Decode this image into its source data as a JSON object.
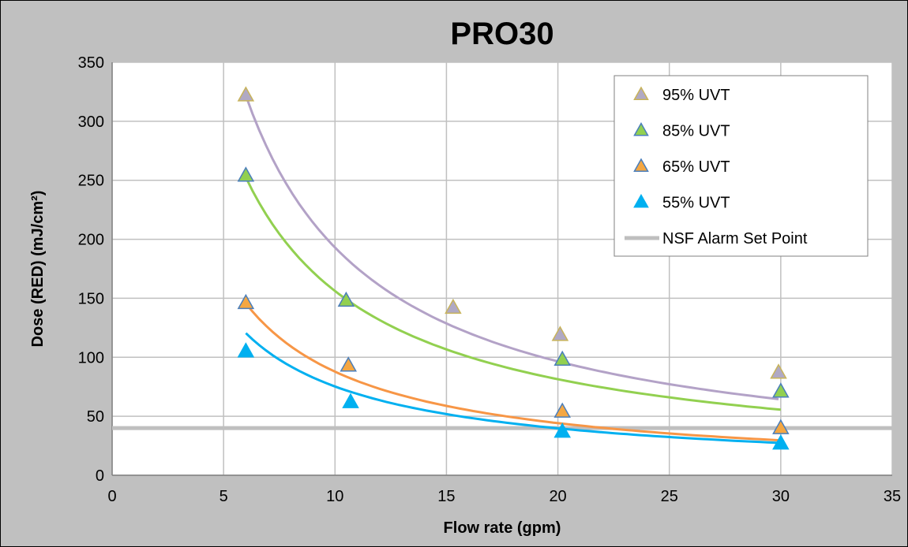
{
  "chart_data": {
    "type": "scatter",
    "title": "PRO30",
    "xlabel": "Flow rate  (gpm)",
    "ylabel": "Dose (RED) (mJ/cm²)",
    "xlim": [
      0,
      35
    ],
    "ylim": [
      0,
      350
    ],
    "xticks": [
      0,
      5,
      10,
      15,
      20,
      25,
      30,
      35
    ],
    "yticks": [
      0,
      50,
      100,
      150,
      200,
      250,
      300,
      350
    ],
    "grid": true,
    "legend_position": "top-right",
    "series": [
      {
        "name": "95% UVT",
        "marker_fill": "#b0a9c4",
        "marker_edge": "#c8b35a",
        "line_color": "#b3a2c7",
        "points": [
          [
            6.0,
            322
          ],
          [
            15.3,
            142
          ],
          [
            20.1,
            119
          ],
          [
            29.9,
            87
          ]
        ],
        "trend": {
          "a": 1930,
          "b": -1
        }
      },
      {
        "name": "85% UVT",
        "marker_fill": "#92d050",
        "marker_edge": "#4a7ebb",
        "line_color": "#92d050",
        "points": [
          [
            6.0,
            254
          ],
          [
            10.5,
            148
          ],
          [
            20.2,
            98
          ],
          [
            30.0,
            71
          ]
        ],
        "trend": {
          "a": 1360,
          "b": -0.94
        }
      },
      {
        "name": "65% UVT",
        "marker_fill": "#f5a742",
        "marker_edge": "#4a7ebb",
        "line_color": "#f79646",
        "points": [
          [
            6.0,
            146
          ],
          [
            10.6,
            93
          ],
          [
            20.2,
            54
          ],
          [
            30.0,
            40
          ]
        ],
        "trend": {
          "a": 858,
          "b": -0.99
        }
      },
      {
        "name": "55% UVT",
        "marker_fill": "#00b0f0",
        "marker_edge": "#00b0f0",
        "line_color": "#00b0f0",
        "points": [
          [
            6.0,
            105
          ],
          [
            10.7,
            62
          ],
          [
            20.2,
            37
          ],
          [
            30.0,
            27
          ]
        ],
        "trend": {
          "a": 626,
          "b": -0.92
        }
      }
    ],
    "reference_lines": [
      {
        "name": "NSF Alarm Set Point",
        "y": 40,
        "color": "#bfbfbf"
      }
    ]
  },
  "colors": {
    "frame_background": "#c0c0c0",
    "plot_background": "#ffffff",
    "gridline": "#c0c0c0"
  }
}
